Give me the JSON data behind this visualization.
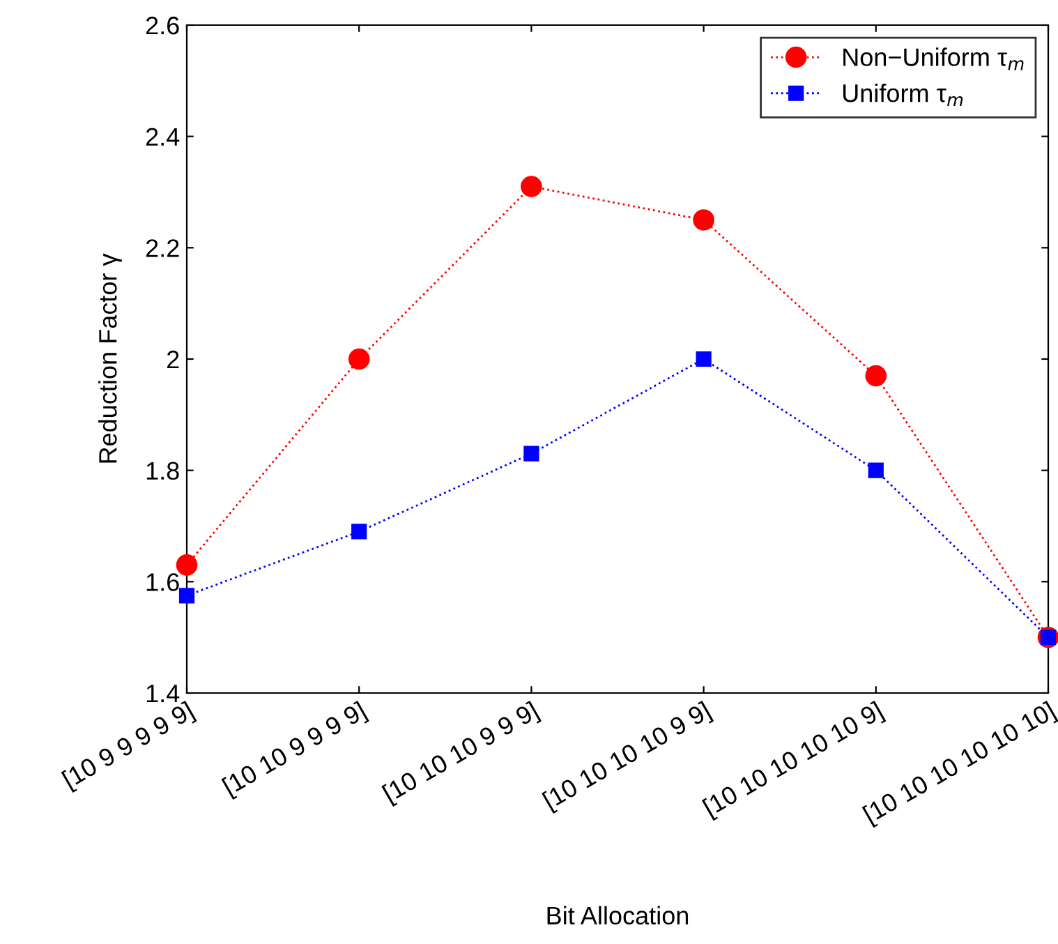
{
  "chart_data": {
    "type": "line",
    "xlabel": "Bit Allocation",
    "ylabel": "Reduction Factor γ",
    "categories": [
      "[10 9 9 9 9 9]",
      "[10 10 9 9 9 9]",
      "[10 10 10 9 9 9]",
      "[10 10 10 10 9 9]",
      "[10 10 10 10 10 9]",
      "[10 10 10 10 10 10]"
    ],
    "series": [
      {
        "name": "Non−Uniform τ$_{m}$",
        "color": "#ff0000",
        "marker": "circle",
        "values": [
          1.63,
          2.0,
          2.31,
          2.25,
          1.97,
          1.5
        ]
      },
      {
        "name": "Uniform τ$_{m}$",
        "color": "#0000ff",
        "marker": "square",
        "values": [
          1.575,
          1.69,
          1.83,
          2.0,
          1.8,
          1.5
        ]
      }
    ],
    "ylim": [
      1.4,
      2.6
    ],
    "yticks": [
      1.4,
      1.6,
      1.8,
      2,
      2.2,
      2.4,
      2.6
    ],
    "line_style": "dotted",
    "grid": false,
    "legend": "top right"
  }
}
